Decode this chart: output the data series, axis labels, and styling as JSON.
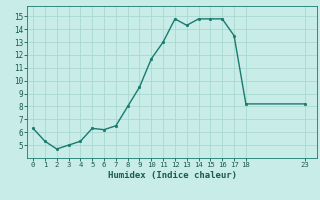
{
  "x": [
    0,
    1,
    2,
    3,
    4,
    5,
    6,
    7,
    8,
    9,
    10,
    11,
    12,
    13,
    14,
    15,
    16,
    17,
    18,
    23
  ],
  "y": [
    6.3,
    5.3,
    4.7,
    5.0,
    5.3,
    6.3,
    6.2,
    6.5,
    8.0,
    9.5,
    11.7,
    13.0,
    14.8,
    14.3,
    14.8,
    14.8,
    14.8,
    13.5,
    8.2,
    8.2
  ],
  "line_color": "#1a7a6e",
  "marker_color": "#1a7a6e",
  "bg_color": "#c8ece8",
  "grid_color": "#aad8d0",
  "xlabel": "Humidex (Indice chaleur)",
  "xlim": [
    -0.5,
    24.0
  ],
  "ylim": [
    4.0,
    15.8
  ],
  "yticks": [
    5,
    6,
    7,
    8,
    9,
    10,
    11,
    12,
    13,
    14,
    15
  ],
  "xticks": [
    0,
    1,
    2,
    3,
    4,
    5,
    6,
    7,
    8,
    9,
    10,
    11,
    12,
    13,
    14,
    15,
    16,
    17,
    18,
    23
  ],
  "xlabel_color": "#1a5a50",
  "axis_color": "#1a7a6e",
  "tick_color": "#1a5a50",
  "bottom_bar_color": "#1a5a50",
  "bottom_bar_height": 0.12
}
